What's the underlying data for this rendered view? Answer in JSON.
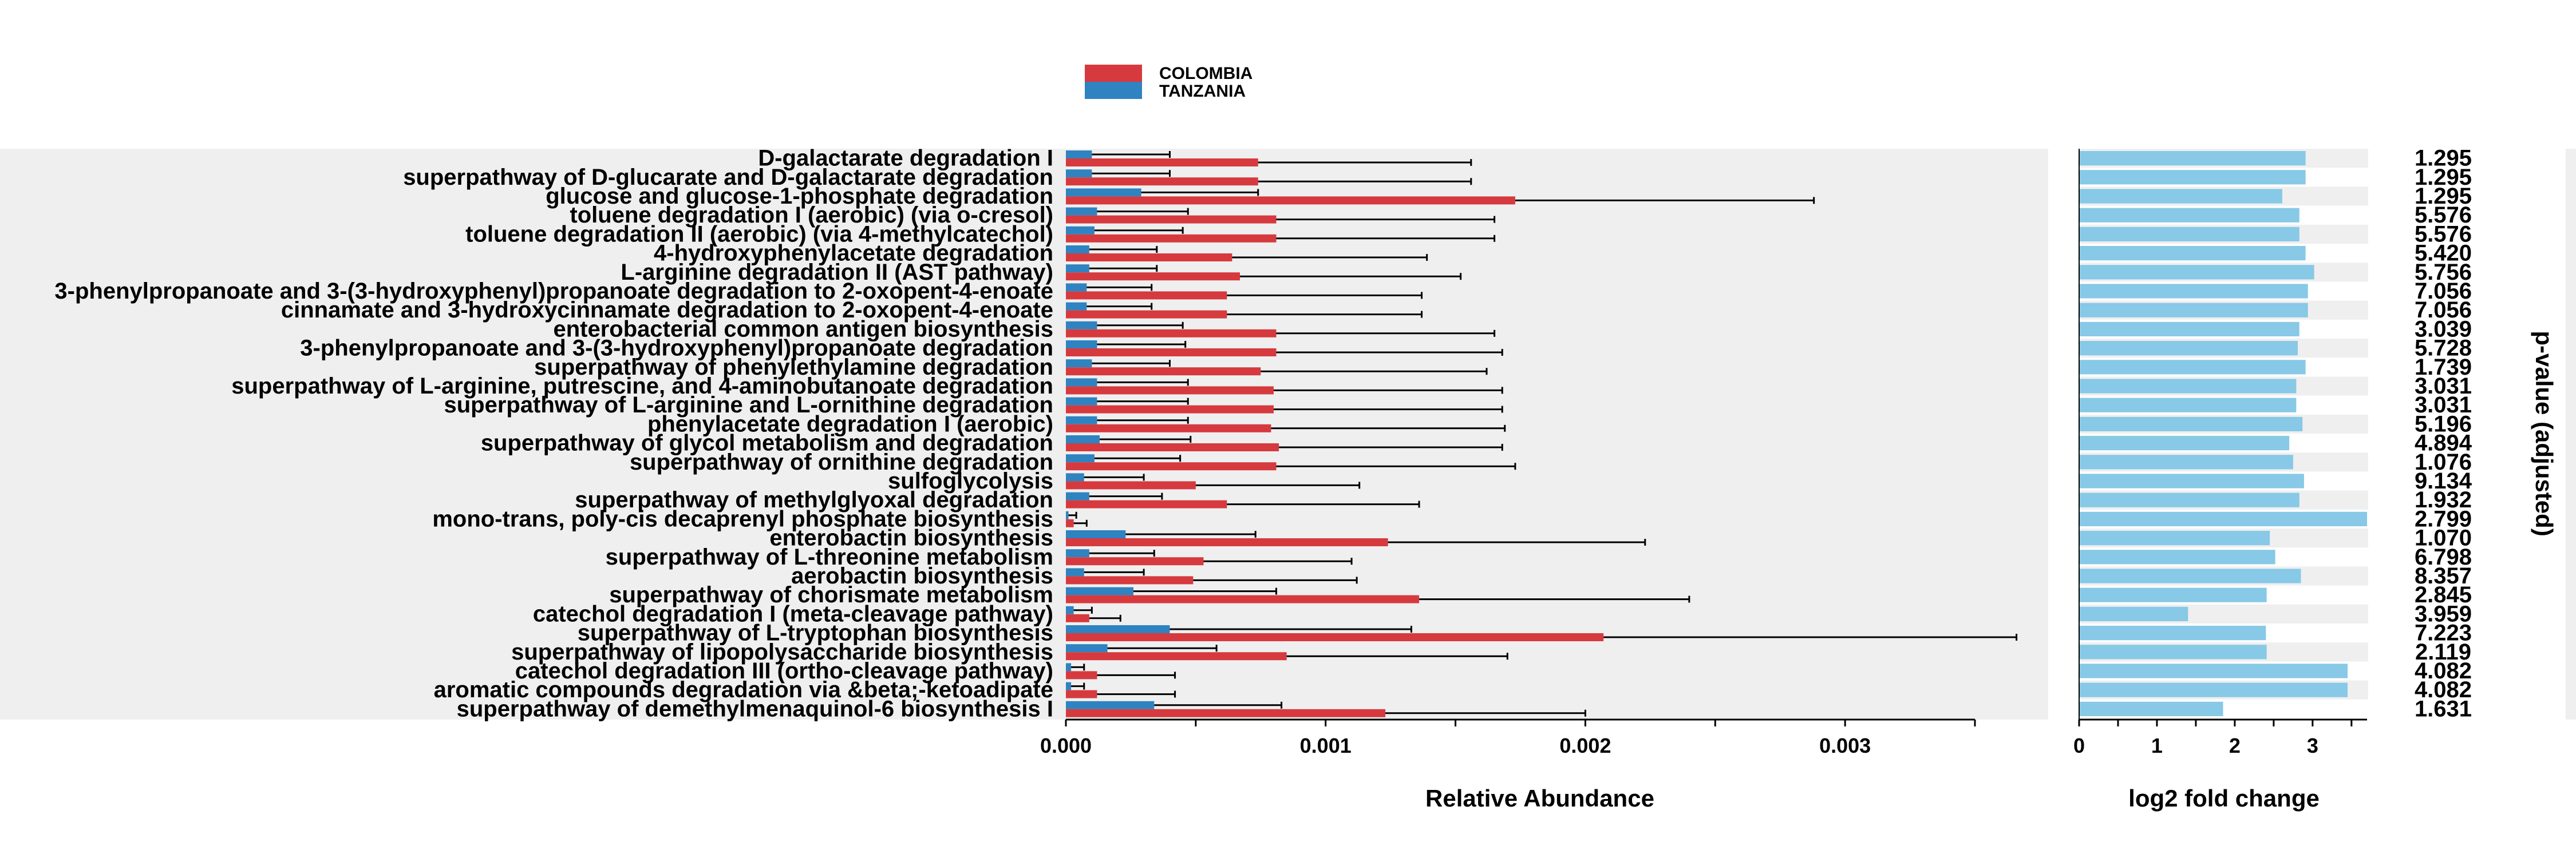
{
  "chart_data": [
    {
      "type": "bar",
      "orientation": "horizontal",
      "xlabel": "Relative Abundance",
      "xlim": [
        0,
        0.0035
      ],
      "xticks": [
        "0.000",
        "0.001",
        "0.002",
        "0.003"
      ],
      "legend": {
        "position": "top",
        "entries": [
          "COLOMBIA",
          "TANZANIA"
        ]
      },
      "categories": [
        "D-galactarate degradation I",
        "superpathway of D-glucarate and D-galactarate degradation",
        "glucose and glucose-1-phosphate degradation",
        "toluene degradation I (aerobic) (via o-cresol)",
        "toluene degradation II (aerobic) (via 4-methylcatechol)",
        "4-hydroxyphenylacetate degradation",
        "L-arginine degradation II (AST pathway)",
        "3-phenylpropanoate and 3-(3-hydroxyphenyl)propanoate degradation to 2-oxopent-4-enoate",
        "cinnamate and 3-hydroxycinnamate degradation to 2-oxopent-4-enoate",
        "enterobacterial common antigen biosynthesis",
        "3-phenylpropanoate and 3-(3-hydroxyphenyl)propanoate degradation",
        "superpathway of phenylethylamine degradation",
        "superpathway of L-arginine, putrescine, and 4-aminobutanoate degradation",
        "superpathway of L-arginine and L-ornithine degradation",
        "phenylacetate degradation I (aerobic)",
        "superpathway of glycol metabolism and degradation",
        "superpathway of ornithine degradation",
        "sulfoglycolysis",
        "superpathway of methylglyoxal degradation",
        "mono-trans, poly-cis decaprenyl phosphate biosynthesis",
        "enterobactin biosynthesis",
        "superpathway of L-threonine metabolism",
        "aerobactin biosynthesis",
        "superpathway of chorismate metabolism",
        "catechol degradation I (meta-cleavage pathway)",
        "superpathway of L-tryptophan biosynthesis",
        "superpathway of lipopolysaccharide biosynthesis",
        "catechol degradation III (ortho-cleavage pathway)",
        "aromatic compounds degradation via &beta;-ketoadipate",
        "superpathway of demethylmenaquinol-6 biosynthesis I"
      ],
      "series": [
        {
          "name": "COLOMBIA",
          "color": "#d63a3e",
          "values": [
            0.00074,
            0.00074,
            0.00173,
            0.00081,
            0.00081,
            0.00064,
            0.00067,
            0.00062,
            0.00062,
            0.00081,
            0.00081,
            0.00075,
            0.0008,
            0.0008,
            0.00079,
            0.00082,
            0.00081,
            0.0005,
            0.00062,
            3e-05,
            0.00124,
            0.00053,
            0.00049,
            0.00136,
            9e-05,
            0.00207,
            0.00085,
            0.00012,
            0.00012,
            0.00123
          ],
          "error": [
            0.00082,
            0.00082,
            0.00115,
            0.00084,
            0.00084,
            0.00075,
            0.00085,
            0.00075,
            0.00075,
            0.00084,
            0.00087,
            0.00087,
            0.00088,
            0.00088,
            0.0009,
            0.00086,
            0.00092,
            0.00063,
            0.00074,
            5e-05,
            0.00099,
            0.00057,
            0.00063,
            0.00104,
            0.00012,
            0.00159,
            0.00085,
            0.0003,
            0.0003,
            0.00077
          ]
        },
        {
          "name": "TANZANIA",
          "color": "#2f83c0",
          "values": [
            0.0001,
            0.0001,
            0.00029,
            0.00012,
            0.00011,
            9e-05,
            9e-05,
            8e-05,
            8e-05,
            0.00012,
            0.00012,
            0.0001,
            0.00012,
            0.00012,
            0.00012,
            0.00013,
            0.00011,
            7e-05,
            9e-05,
            1e-05,
            0.00023,
            9e-05,
            7e-05,
            0.00026,
            3e-05,
            0.0004,
            0.00016,
            2e-05,
            2e-05,
            0.00034
          ],
          "error": [
            0.0003,
            0.0003,
            0.00045,
            0.00035,
            0.00034,
            0.00026,
            0.00026,
            0.00025,
            0.00025,
            0.00033,
            0.00034,
            0.0003,
            0.00035,
            0.00035,
            0.00035,
            0.00035,
            0.00033,
            0.00023,
            0.00028,
            3e-05,
            0.0005,
            0.00025,
            0.00023,
            0.00055,
            7e-05,
            0.00093,
            0.00042,
            5e-05,
            5e-05,
            0.00049
          ]
        }
      ]
    },
    {
      "type": "bar",
      "orientation": "horizontal",
      "xlabel": "log2 fold change",
      "xlim": [
        0,
        3.7
      ],
      "xticks": [
        "0",
        "1",
        "2",
        "3"
      ],
      "color": "#87c9e6",
      "values": [
        2.91,
        2.91,
        2.61,
        2.83,
        2.83,
        2.91,
        3.02,
        2.94,
        2.94,
        2.83,
        2.81,
        2.91,
        2.79,
        2.79,
        2.87,
        2.7,
        2.75,
        2.89,
        2.83,
        3.7,
        2.45,
        2.52,
        2.85,
        2.41,
        1.4,
        2.4,
        2.41,
        3.45,
        3.45,
        1.85
      ],
      "value_labels": [
        "1.295",
        "1.295",
        "1.295",
        "5.576",
        "5.576",
        "5.420",
        "5.756",
        "7.056",
        "7.056",
        "3.039",
        "5.728",
        "1.739",
        "3.031",
        "3.031",
        "5.196",
        "4.894",
        "1.076",
        "9.134",
        "1.932",
        "2.799",
        "1.070",
        "6.798",
        "8.357",
        "2.845",
        "3.959",
        "7.223",
        "2.119",
        "4.082",
        "4.082",
        "1.631"
      ],
      "value_labels_title": "p-value (adjusted)"
    }
  ]
}
